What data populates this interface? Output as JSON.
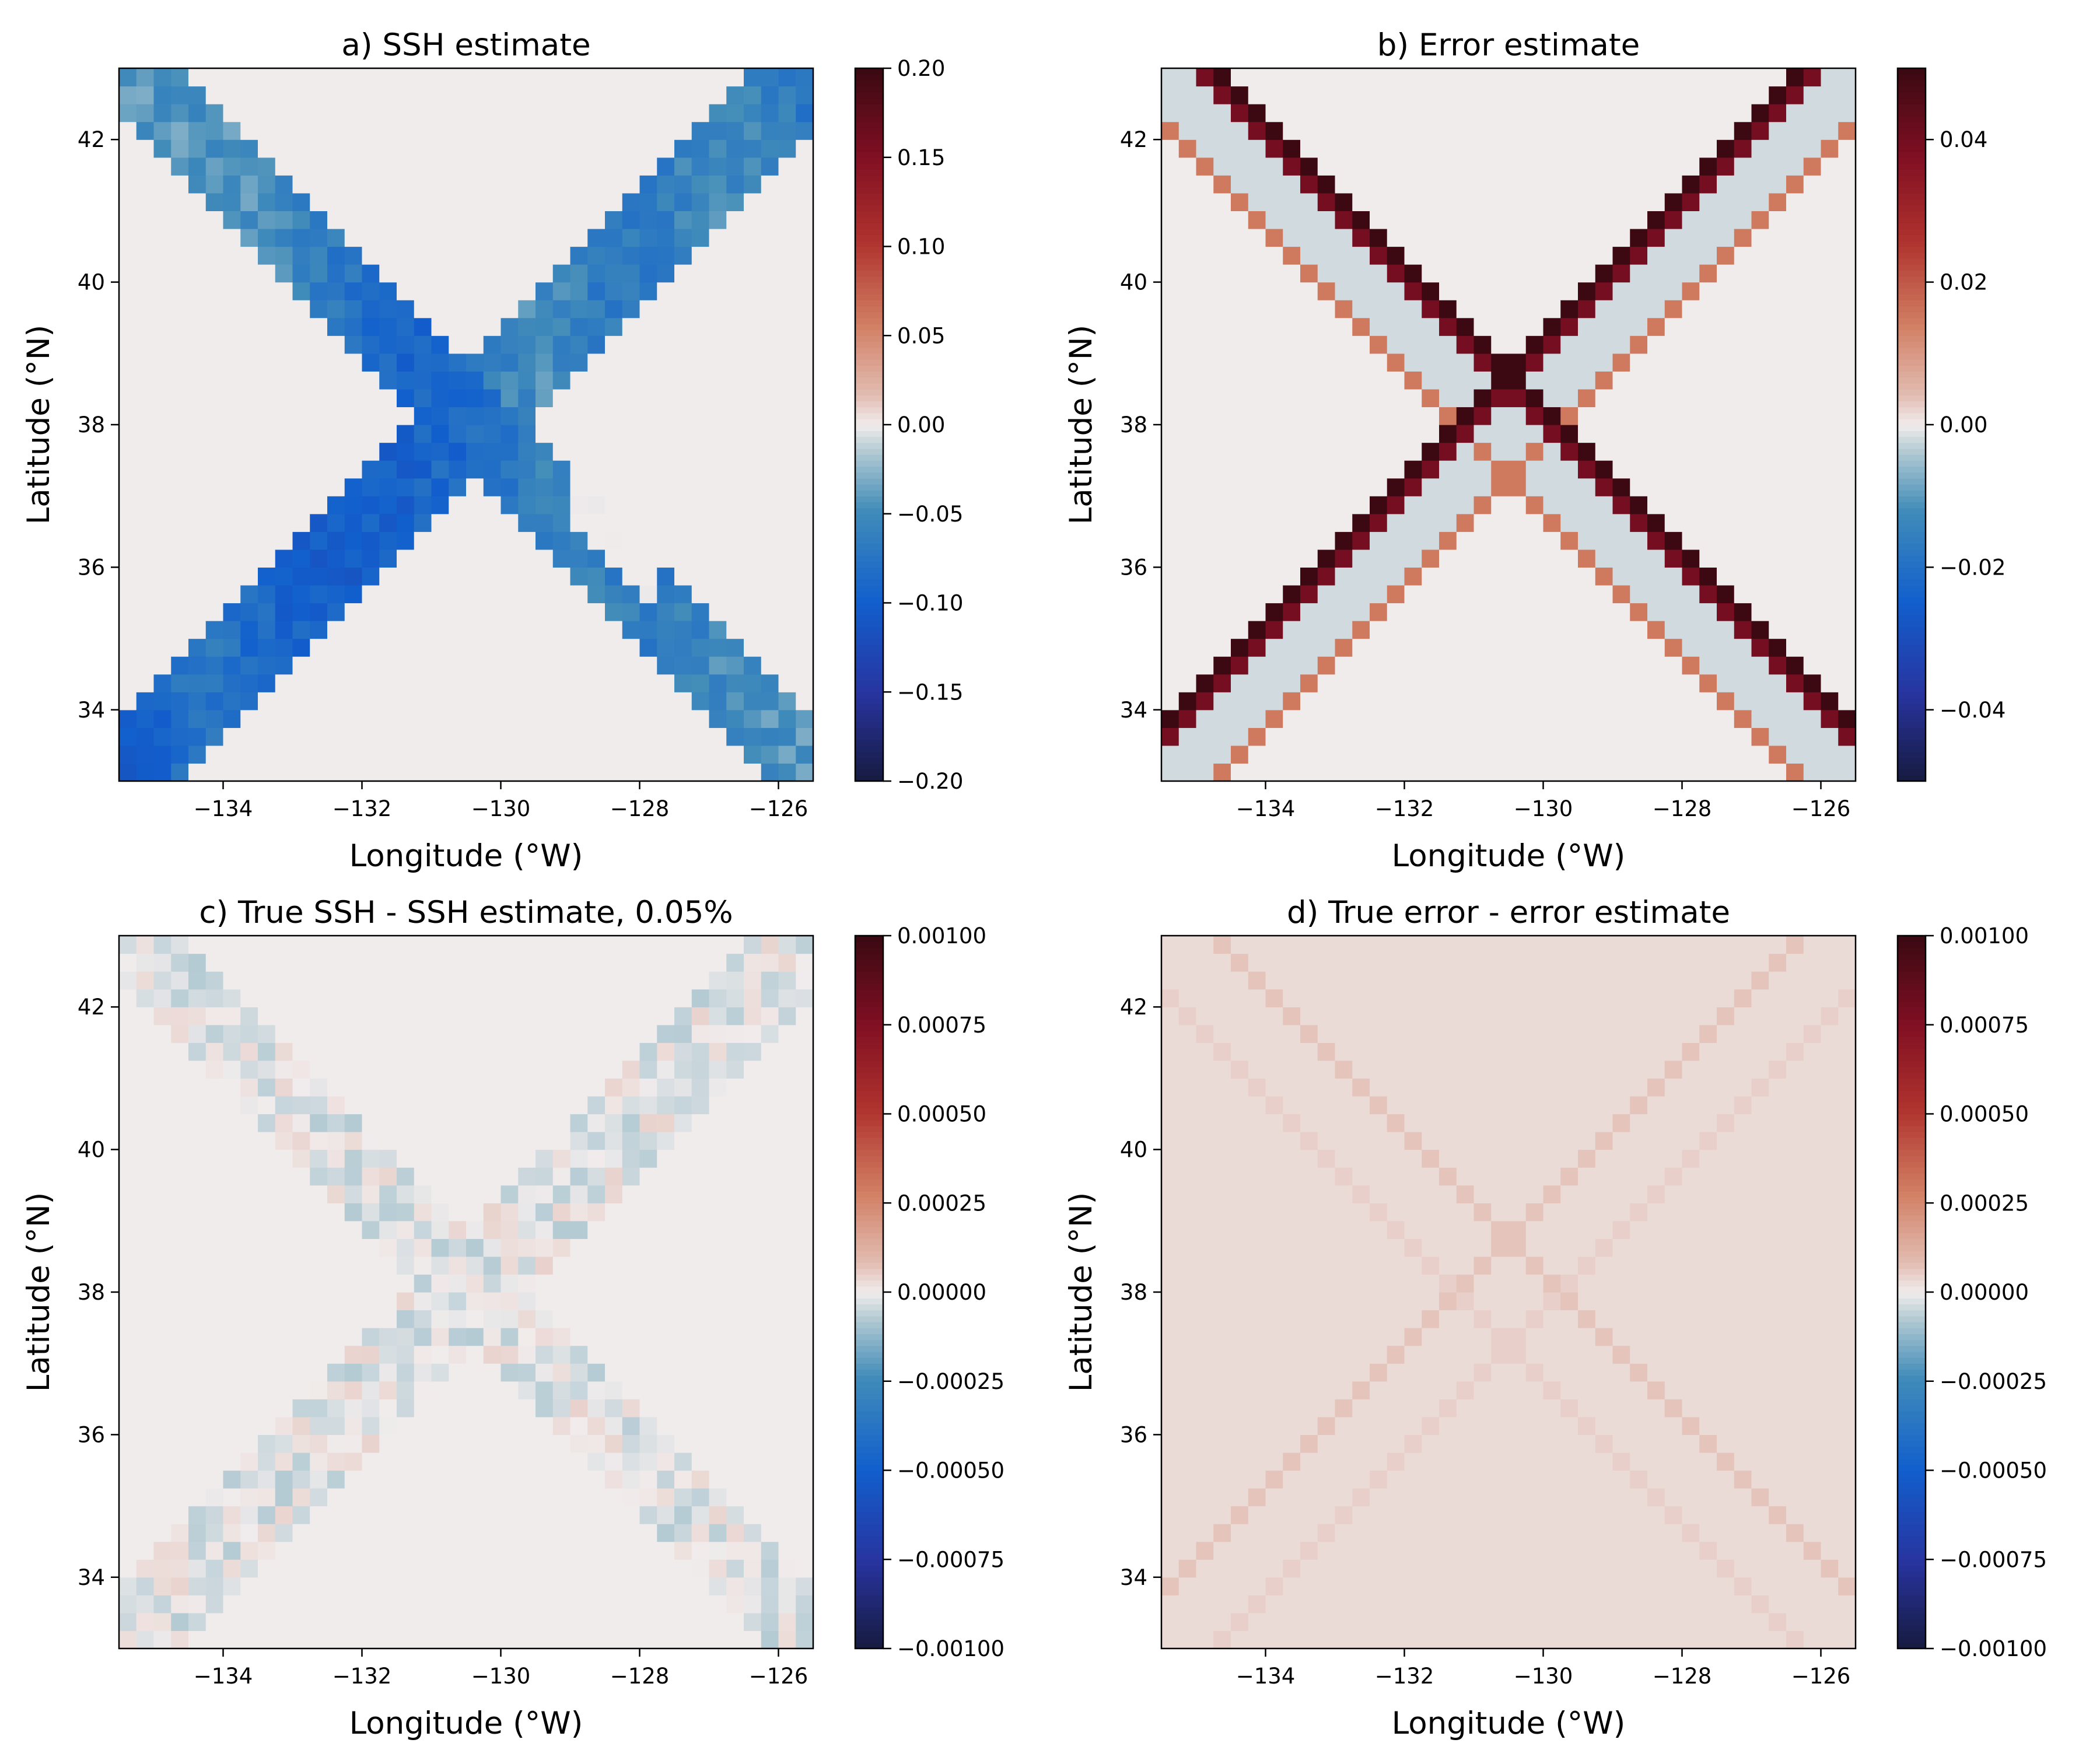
{
  "chart_data": [
    {
      "type": "heatmap",
      "panel": "a",
      "title": "a) SSH estimate",
      "xlabel": "Longitude (°W)",
      "ylabel": "Latitude (°N)",
      "xlim": [
        -135.5,
        -125.5
      ],
      "ylim": [
        33,
        43
      ],
      "xticks": [
        -134,
        -132,
        -130,
        -128,
        -126
      ],
      "xtick_labels": [
        "−134",
        "−132",
        "−130",
        "−128",
        "−126"
      ],
      "yticks": [
        34,
        36,
        38,
        40,
        42
      ],
      "ytick_labels": [
        "34",
        "36",
        "38",
        "40",
        "42"
      ],
      "colorbar": {
        "range": [
          -0.2,
          0.2
        ],
        "ticks": [
          -0.2,
          -0.15,
          -0.1,
          -0.05,
          0,
          0.05,
          0.1,
          0.15,
          0.2
        ],
        "tick_labels": [
          "−0.20",
          "−0.15",
          "−0.10",
          "−0.05",
          "0.00",
          "0.05",
          "0.10",
          "0.15",
          "0.20"
        ],
        "colormap": "balance"
      },
      "grid_shape": [
        40,
        40
      ],
      "pattern": "two crossing diagonal satellite swaths (X shape) meeting near 131°W, 38°N; values about -0.03 to -0.13 inside the swaths, strongest (about -0.13) near the lower-left corner and the crossing; background 0.",
      "background_value": 0.0
    },
    {
      "type": "heatmap",
      "panel": "b",
      "title": "b) Error estimate",
      "xlabel": "Longitude (°W)",
      "ylabel": "Latitude (°N)",
      "xlim": [
        -135.5,
        -125.5
      ],
      "ylim": [
        33,
        43
      ],
      "xticks": [
        -134,
        -132,
        -130,
        -128,
        -126
      ],
      "xtick_labels": [
        "−134",
        "−132",
        "−130",
        "−128",
        "−126"
      ],
      "yticks": [
        34,
        36,
        38,
        40,
        42
      ],
      "ytick_labels": [
        "34",
        "36",
        "38",
        "40",
        "42"
      ],
      "colorbar": {
        "range": [
          -0.05,
          0.05
        ],
        "ticks": [
          -0.04,
          -0.02,
          0,
          0.02,
          0.04
        ],
        "tick_labels": [
          "−0.04",
          "−0.02",
          "0.00",
          "0.02",
          "0.04"
        ],
        "colormap": "balance"
      },
      "grid_shape": [
        40,
        40
      ],
      "pattern": "X-shaped swath bands: outer edge cells about 0.05 (dark red), next about 0.04, interior about -0.002, inner edge about 0.015; background 0.",
      "background_value": 0.0
    },
    {
      "type": "heatmap",
      "panel": "c",
      "title": "c) True SSH - SSH estimate, 0.05%",
      "xlabel": "Longitude (°W)",
      "ylabel": "Latitude (°N)",
      "xlim": [
        -135.5,
        -125.5
      ],
      "ylim": [
        33,
        43
      ],
      "xticks": [
        -134,
        -132,
        -130,
        -128,
        -126
      ],
      "xtick_labels": [
        "−134",
        "−132",
        "−130",
        "−128",
        "−126"
      ],
      "yticks": [
        34,
        36,
        38,
        40,
        42
      ],
      "ytick_labels": [
        "34",
        "36",
        "38",
        "40",
        "42"
      ],
      "colorbar": {
        "range": [
          -0.001,
          0.001
        ],
        "ticks": [
          -0.001,
          -0.00075,
          -0.0005,
          -0.00025,
          0,
          0.00025,
          0.0005,
          0.00075,
          0.001
        ],
        "tick_labels": [
          "−0.00100",
          "−0.00075",
          "−0.00050",
          "−0.00025",
          "0.00000",
          "0.00025",
          "0.00050",
          "0.00075",
          "0.00100"
        ],
        "colormap": "balance"
      },
      "grid_shape": [
        40,
        40
      ],
      "pattern": "faint X-shaped swath residuals, values within about ±0.0001; background 0.",
      "background_value": 0.0
    },
    {
      "type": "heatmap",
      "panel": "d",
      "title": "d) True error - error estimate",
      "xlabel": "Longitude (°W)",
      "ylabel": "Latitude (°N)",
      "xlim": [
        -135.5,
        -125.5
      ],
      "ylim": [
        33,
        43
      ],
      "xticks": [
        -134,
        -132,
        -130,
        -128,
        -126
      ],
      "xtick_labels": [
        "−134",
        "−132",
        "−130",
        "−128",
        "−126"
      ],
      "yticks": [
        34,
        36,
        38,
        40,
        42
      ],
      "ytick_labels": [
        "34",
        "36",
        "38",
        "40",
        "42"
      ],
      "colorbar": {
        "range": [
          -0.001,
          0.001
        ],
        "ticks": [
          -0.001,
          -0.00075,
          -0.0005,
          -0.00025,
          0,
          0.00025,
          0.0005,
          0.00075,
          0.001
        ],
        "tick_labels": [
          "−0.00100",
          "−0.00075",
          "−0.00050",
          "−0.00025",
          "0.00000",
          "0.00025",
          "0.00050",
          "0.00075",
          "0.00100"
        ],
        "colormap": "balance"
      },
      "grid_shape": [
        40,
        40
      ],
      "pattern": "faint positive X-shaped bands (about 0.00006) along swath edges; background about 0.00003.",
      "background_value": 3e-05
    }
  ]
}
